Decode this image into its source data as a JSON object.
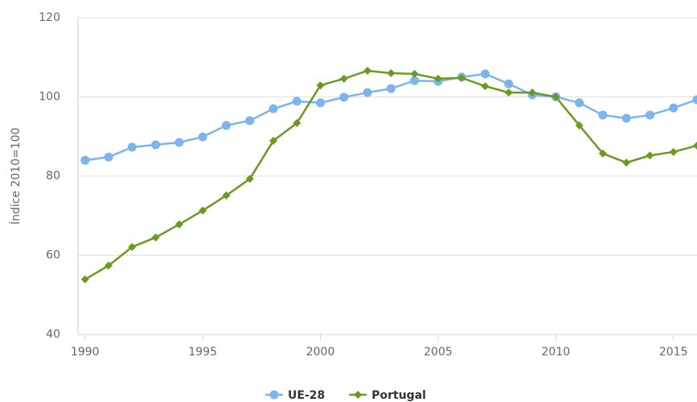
{
  "chart_data": {
    "type": "line",
    "y_label": "Índice 2010=100",
    "x": [
      1990,
      1991,
      1992,
      1993,
      1994,
      1995,
      1996,
      1997,
      1998,
      1999,
      2000,
      2001,
      2002,
      2003,
      2004,
      2005,
      2006,
      2007,
      2008,
      2009,
      2010,
      2011,
      2012,
      2013,
      2014,
      2015,
      2016
    ],
    "series": [
      {
        "name": "UE-28",
        "color": "#7cb5ec",
        "marker": "circle",
        "values": [
          84.0,
          84.8,
          87.3,
          87.9,
          88.5,
          89.9,
          92.8,
          94.0,
          97.0,
          98.9,
          98.5,
          99.9,
          101.1,
          102.1,
          104.1,
          103.9,
          105.0,
          105.8,
          103.3,
          100.5,
          100,
          98.5,
          95.4,
          94.6,
          95.4,
          97.2,
          99.3
        ]
      },
      {
        "name": "Portugal",
        "color": "#6a9a1f",
        "marker": "diamond",
        "values": [
          53.9,
          57.4,
          62.1,
          64.5,
          67.8,
          71.3,
          75.1,
          79.3,
          88.9,
          93.4,
          102.9,
          104.6,
          106.6,
          106.0,
          105.8,
          104.6,
          104.8,
          102.7,
          101.1,
          101.1,
          100,
          92.8,
          85.7,
          83.4,
          85.2,
          86.1,
          87.7
        ]
      }
    ],
    "xlim": [
      1989.7,
      2016
    ],
    "xticks": [
      1990,
      1995,
      2000,
      2005,
      2010,
      2015
    ],
    "ylim": [
      40,
      120
    ],
    "yticks": [
      40,
      60,
      80,
      100,
      120
    ],
    "grid": true,
    "legend": "bottom"
  }
}
